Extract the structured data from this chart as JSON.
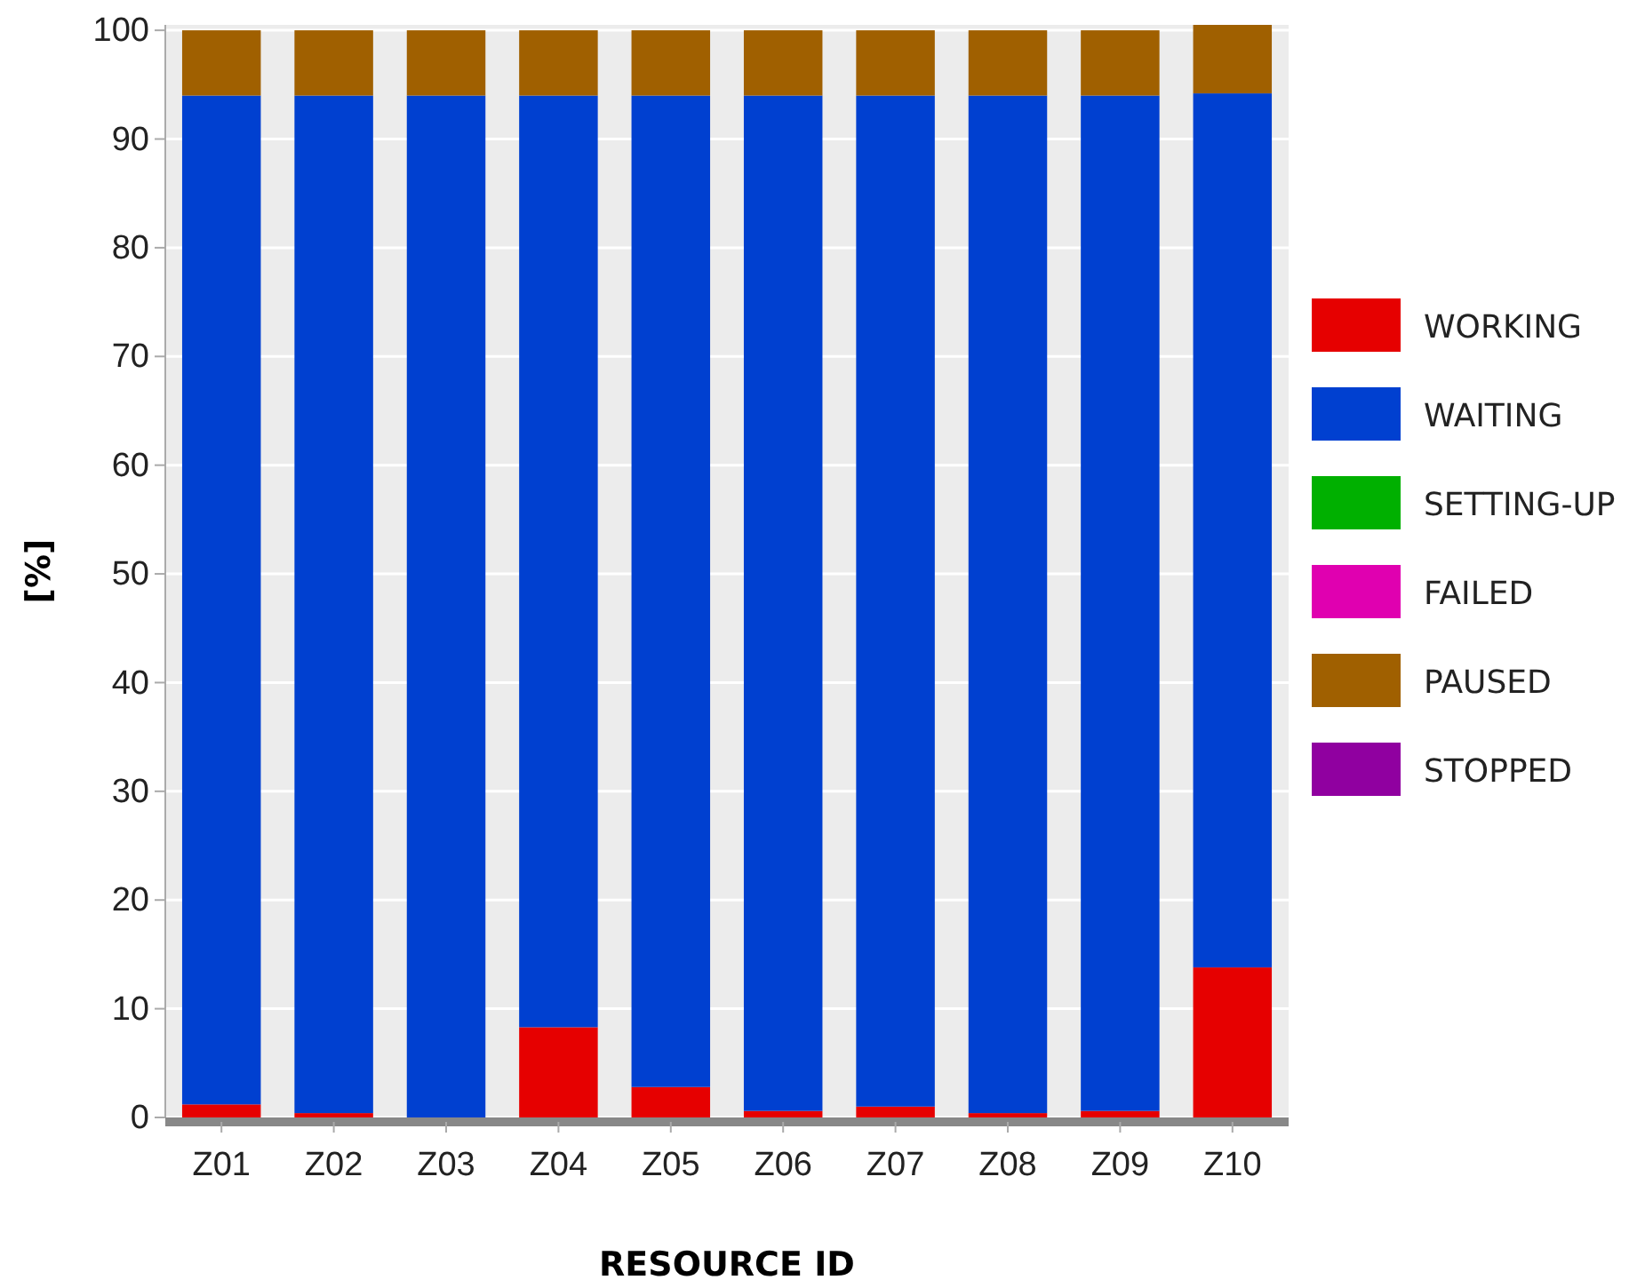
{
  "chart_data": {
    "type": "bar",
    "stacked": true,
    "xlabel": "RESOURCE ID",
    "ylabel": "[%]",
    "categories": [
      "Z01",
      "Z02",
      "Z03",
      "Z04",
      "Z05",
      "Z06",
      "Z07",
      "Z08",
      "Z09",
      "Z10"
    ],
    "series": [
      {
        "name": "WORKING",
        "color": "#e60000",
        "values": [
          1.2,
          0.4,
          0,
          8.3,
          2.8,
          0.6,
          1.0,
          0.4,
          0.6,
          13.8
        ]
      },
      {
        "name": "WAITING",
        "color": "#0040d0",
        "values": [
          92.8,
          93.6,
          94,
          85.7,
          91.2,
          93.4,
          93.0,
          93.6,
          93.4,
          80.4
        ]
      },
      {
        "name": "SETTING-UP",
        "color": "#00b000",
        "values": [
          0,
          0,
          0,
          0,
          0,
          0,
          0,
          0,
          0,
          0
        ]
      },
      {
        "name": "FAILED",
        "color": "#e000b0",
        "values": [
          0,
          0,
          0,
          0,
          0,
          0,
          0,
          0,
          0,
          0
        ]
      },
      {
        "name": "PAUSED",
        "color": "#a06000",
        "values": [
          6,
          6,
          6,
          6,
          6,
          6,
          6,
          6,
          6,
          6.3
        ]
      },
      {
        "name": "STOPPED",
        "color": "#9000a0",
        "values": [
          0,
          0,
          0,
          0,
          0,
          0,
          0,
          0,
          0,
          0
        ]
      }
    ],
    "ylim": [
      0,
      100.5
    ],
    "yticks": [
      0,
      10,
      20,
      30,
      40,
      50,
      60,
      70,
      80,
      90,
      100
    ],
    "grid": "y",
    "legend": "right"
  }
}
